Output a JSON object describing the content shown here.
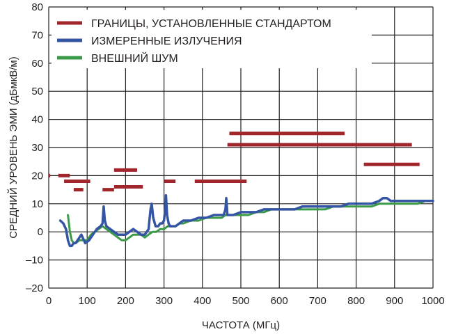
{
  "chart_data": {
    "type": "line",
    "xlabel": "ЧАСТОТА (МГц)",
    "ylabel": "СРЕДНИЙ УРОВЕНЬ ЭМИ (дБмкВ/м)",
    "xlim": [
      0,
      1000
    ],
    "ylim": [
      -20,
      80
    ],
    "x_ticks": [
      0,
      100,
      200,
      300,
      400,
      500,
      600,
      700,
      800,
      900,
      1000
    ],
    "y_ticks": [
      -20,
      -10,
      0,
      10,
      20,
      30,
      40,
      50,
      60,
      70,
      80
    ],
    "x_tick_labels": [
      "0",
      "100",
      "200",
      "300",
      "400",
      "500",
      "600",
      "700",
      "800",
      "900",
      "1000"
    ],
    "y_tick_labels": [
      "–20",
      "–10",
      "0",
      "10",
      "20",
      "30",
      "40",
      "50",
      "60",
      "70",
      "80"
    ],
    "grid": true,
    "legend_position": "top-left",
    "colors": {
      "limits": "#a0262c",
      "measured": "#3454a4",
      "noise": "#3b9a47"
    },
    "series": [
      {
        "name": "ГРАНИЦЫ, УСТАНОВЛЕННЫЕ СТАНДАРТОМ",
        "kind": "segments",
        "segments": [
          [
            0,
            4,
            20
          ],
          [
            25,
            55,
            20
          ],
          [
            40,
            108,
            18
          ],
          [
            65,
            90,
            15
          ],
          [
            140,
            170,
            15
          ],
          [
            170,
            245,
            16
          ],
          [
            170,
            230,
            22
          ],
          [
            300,
            330,
            18
          ],
          [
            380,
            515,
            18
          ],
          [
            470,
            770,
            35
          ],
          [
            465,
            945,
            31
          ],
          [
            820,
            965,
            24
          ]
        ]
      },
      {
        "name": "ИЗМЕРЕННЫЕ ИЗЛУЧЕНИЯ",
        "x": [
          30,
          38,
          45,
          50,
          55,
          60,
          65,
          70,
          75,
          85,
          95,
          105,
          115,
          125,
          135,
          140,
          143,
          146,
          150,
          160,
          170,
          180,
          190,
          200,
          210,
          220,
          230,
          240,
          250,
          255,
          260,
          262,
          265,
          268,
          272,
          278,
          285,
          290,
          295,
          300,
          303,
          305,
          308,
          312,
          316,
          320,
          330,
          340,
          350,
          370,
          390,
          410,
          430,
          440,
          450,
          455,
          460,
          462,
          465,
          470,
          480,
          500,
          520,
          540,
          560,
          580,
          600,
          620,
          640,
          660,
          680,
          700,
          720,
          740,
          760,
          780,
          800,
          820,
          840,
          860,
          870,
          880,
          890,
          900,
          920,
          940,
          960,
          980,
          1000
        ],
        "y": [
          4,
          3,
          1,
          -3,
          -5,
          -5,
          -4,
          -4,
          -3,
          -1,
          -4,
          -3,
          -1,
          1,
          2,
          3,
          9,
          4,
          2,
          1,
          0,
          -1,
          -1,
          -1,
          0,
          1,
          0,
          -1,
          -1,
          0,
          1,
          4,
          8,
          10,
          5,
          2,
          2,
          3,
          3,
          4,
          8,
          13,
          6,
          3,
          2,
          2,
          2,
          3,
          4,
          4,
          5,
          5,
          6,
          6,
          6,
          6,
          8,
          12,
          6,
          6,
          6,
          7,
          7,
          7,
          8,
          8,
          8,
          8,
          8,
          9,
          9,
          9,
          9,
          9,
          9,
          10,
          10,
          10,
          10,
          11,
          12,
          12,
          11,
          11,
          11,
          11,
          11,
          11,
          11
        ]
      },
      {
        "name": "ВНЕШНИЙ ШУМ",
        "x": [
          50,
          55,
          60,
          65,
          70,
          80,
          90,
          100,
          110,
          120,
          130,
          140,
          150,
          160,
          170,
          180,
          190,
          200,
          210,
          220,
          230,
          240,
          250,
          260,
          270,
          280,
          290,
          300,
          310,
          320,
          330,
          340,
          350,
          370,
          390,
          410,
          430,
          450,
          460,
          470,
          480,
          500,
          520,
          540,
          560,
          580,
          600,
          620,
          640,
          660,
          680,
          700,
          720,
          740,
          760,
          780,
          800,
          820,
          840,
          860,
          880,
          900,
          920,
          940,
          960,
          980,
          1000
        ],
        "y": [
          6,
          0,
          -3,
          -4,
          -4,
          -3,
          -3,
          -3,
          -1,
          0,
          1,
          2,
          1,
          0,
          -1,
          -2,
          -3,
          -3,
          -2,
          -1,
          -1,
          -1,
          -2,
          -1,
          0,
          0,
          1,
          1,
          2,
          2,
          2,
          3,
          3,
          4,
          4,
          5,
          5,
          5,
          6,
          6,
          6,
          6,
          6,
          7,
          7,
          8,
          8,
          8,
          8,
          8,
          8,
          8,
          8,
          9,
          9,
          9,
          9,
          9,
          9,
          10,
          10,
          10,
          10,
          10,
          10,
          11,
          11
        ]
      }
    ]
  }
}
